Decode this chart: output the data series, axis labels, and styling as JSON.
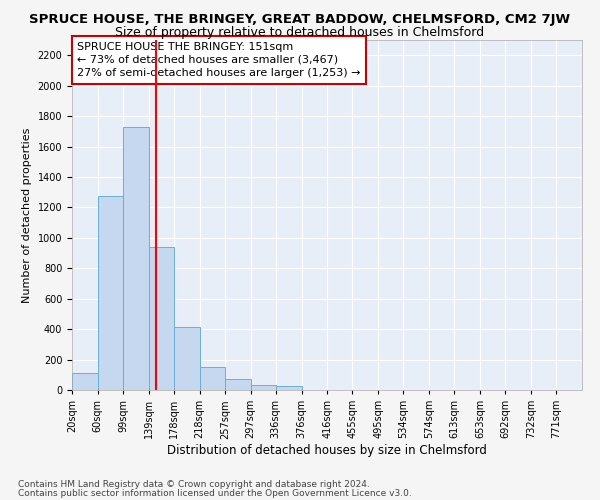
{
  "title": "SPRUCE HOUSE, THE BRINGEY, GREAT BADDOW, CHELMSFORD, CM2 7JW",
  "subtitle": "Size of property relative to detached houses in Chelmsford",
  "xlabel": "Distribution of detached houses by size in Chelmsford",
  "ylabel": "Number of detached properties",
  "footnote1": "Contains HM Land Registry data © Crown copyright and database right 2024.",
  "footnote2": "Contains public sector information licensed under the Open Government Licence v3.0.",
  "annotation_line1": "SPRUCE HOUSE THE BRINGEY: 151sqm",
  "annotation_line2": "← 73% of detached houses are smaller (3,467)",
  "annotation_line3": "27% of semi-detached houses are larger (1,253) →",
  "bar_edges": [
    20,
    60,
    99,
    139,
    178,
    218,
    257,
    297,
    336,
    376,
    416,
    455,
    495,
    534,
    574,
    613,
    653,
    692,
    732,
    771,
    811
  ],
  "bar_heights": [
    115,
    1275,
    1730,
    940,
    415,
    150,
    75,
    35,
    25,
    0,
    0,
    0,
    0,
    0,
    0,
    0,
    0,
    0,
    0,
    0
  ],
  "bar_color": "#c5d8f0",
  "bar_edgecolor": "#6baed6",
  "red_line_x": 151,
  "ylim": [
    0,
    2300
  ],
  "yticks": [
    0,
    200,
    400,
    600,
    800,
    1000,
    1200,
    1400,
    1600,
    1800,
    2000,
    2200
  ],
  "background_color": "#e8eef8",
  "grid_color": "#ffffff",
  "annotation_box_facecolor": "#ffffff",
  "annotation_box_edgecolor": "#cc0000",
  "title_fontsize": 9.5,
  "subtitle_fontsize": 9,
  "xlabel_fontsize": 8.5,
  "ylabel_fontsize": 8,
  "tick_fontsize": 7,
  "annotation_fontsize": 8,
  "footnote_fontsize": 6.5,
  "fig_facecolor": "#f5f5f5"
}
